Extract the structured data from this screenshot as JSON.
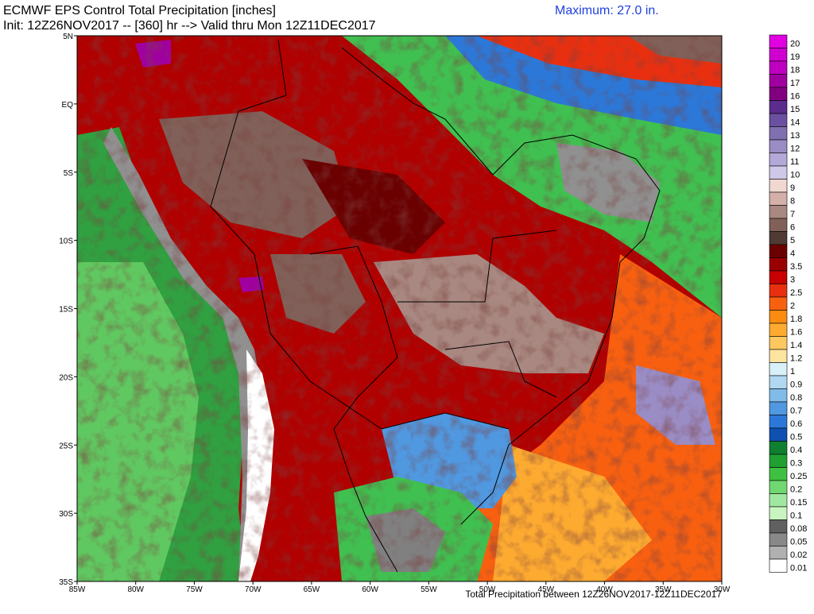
{
  "header": {
    "title": "ECMWF EPS Control Total Precipitation [inches]",
    "subtitle": "Init: 12Z26NOV2017 -- [360] hr --> Valid thru Mon 12Z11DEC2017",
    "maximum": "Maximum: 27.0 in."
  },
  "map": {
    "lat_labels": [
      "5N",
      "EQ",
      "5S",
      "10S",
      "15S",
      "20S",
      "25S",
      "30S",
      "35S"
    ],
    "lon_labels": [
      "85W",
      "80W",
      "75W",
      "70W",
      "65W",
      "60W",
      "55W",
      "50W",
      "45W",
      "40W",
      "35W",
      "30W"
    ],
    "footer": "Total Precipitation between 12Z26NOV2017-12Z11DEC2017"
  },
  "colorbar": [
    {
      "label": "20",
      "color": "#e000e0"
    },
    {
      "label": "19",
      "color": "#d000d0"
    },
    {
      "label": "18",
      "color": "#c000c0"
    },
    {
      "label": "17",
      "color": "#a000a0"
    },
    {
      "label": "16",
      "color": "#800080"
    },
    {
      "label": "15",
      "color": "#5c2c8c"
    },
    {
      "label": "14",
      "color": "#6a50a0"
    },
    {
      "label": "13",
      "color": "#8070b0"
    },
    {
      "label": "12",
      "color": "#9a8cc4"
    },
    {
      "label": "11",
      "color": "#b4a8d8"
    },
    {
      "label": "10",
      "color": "#d0c8e8"
    },
    {
      "label": "9",
      "color": "#f0d8d0"
    },
    {
      "label": "8",
      "color": "#d4b0a8"
    },
    {
      "label": "7",
      "color": "#a88880"
    },
    {
      "label": "6",
      "color": "#806058"
    },
    {
      "label": "5",
      "color": "#503a34"
    },
    {
      "label": "4",
      "color": "#6a0000"
    },
    {
      "label": "3.5",
      "color": "#9a0000"
    },
    {
      "label": "3",
      "color": "#c80000"
    },
    {
      "label": "2.5",
      "color": "#e83010"
    },
    {
      "label": "2",
      "color": "#f86010"
    },
    {
      "label": "1.8",
      "color": "#fc8c10"
    },
    {
      "label": "1.6",
      "color": "#fdaa30"
    },
    {
      "label": "1.4",
      "color": "#fdc860"
    },
    {
      "label": "1.2",
      "color": "#fde4a0"
    },
    {
      "label": "1",
      "color": "#d8f0f8"
    },
    {
      "label": "0.9",
      "color": "#b0d8f0"
    },
    {
      "label": "0.8",
      "color": "#80bce8"
    },
    {
      "label": "0.7",
      "color": "#5098e0"
    },
    {
      "label": "0.6",
      "color": "#2c78d8"
    },
    {
      "label": "0.5",
      "color": "#1050b0"
    },
    {
      "label": "0.4",
      "color": "#108030"
    },
    {
      "label": "0.3",
      "color": "#20a030"
    },
    {
      "label": "0.25",
      "color": "#40c040"
    },
    {
      "label": "0.2",
      "color": "#70d870"
    },
    {
      "label": "0.15",
      "color": "#a0e8a0"
    },
    {
      "label": "0.1",
      "color": "#c8f4c0"
    },
    {
      "label": "0.08",
      "color": "#606060"
    },
    {
      "label": "0.05",
      "color": "#888888"
    },
    {
      "label": "0.02",
      "color": "#b0b0b0"
    },
    {
      "label": "0.01",
      "color": "#ffffff"
    }
  ]
}
